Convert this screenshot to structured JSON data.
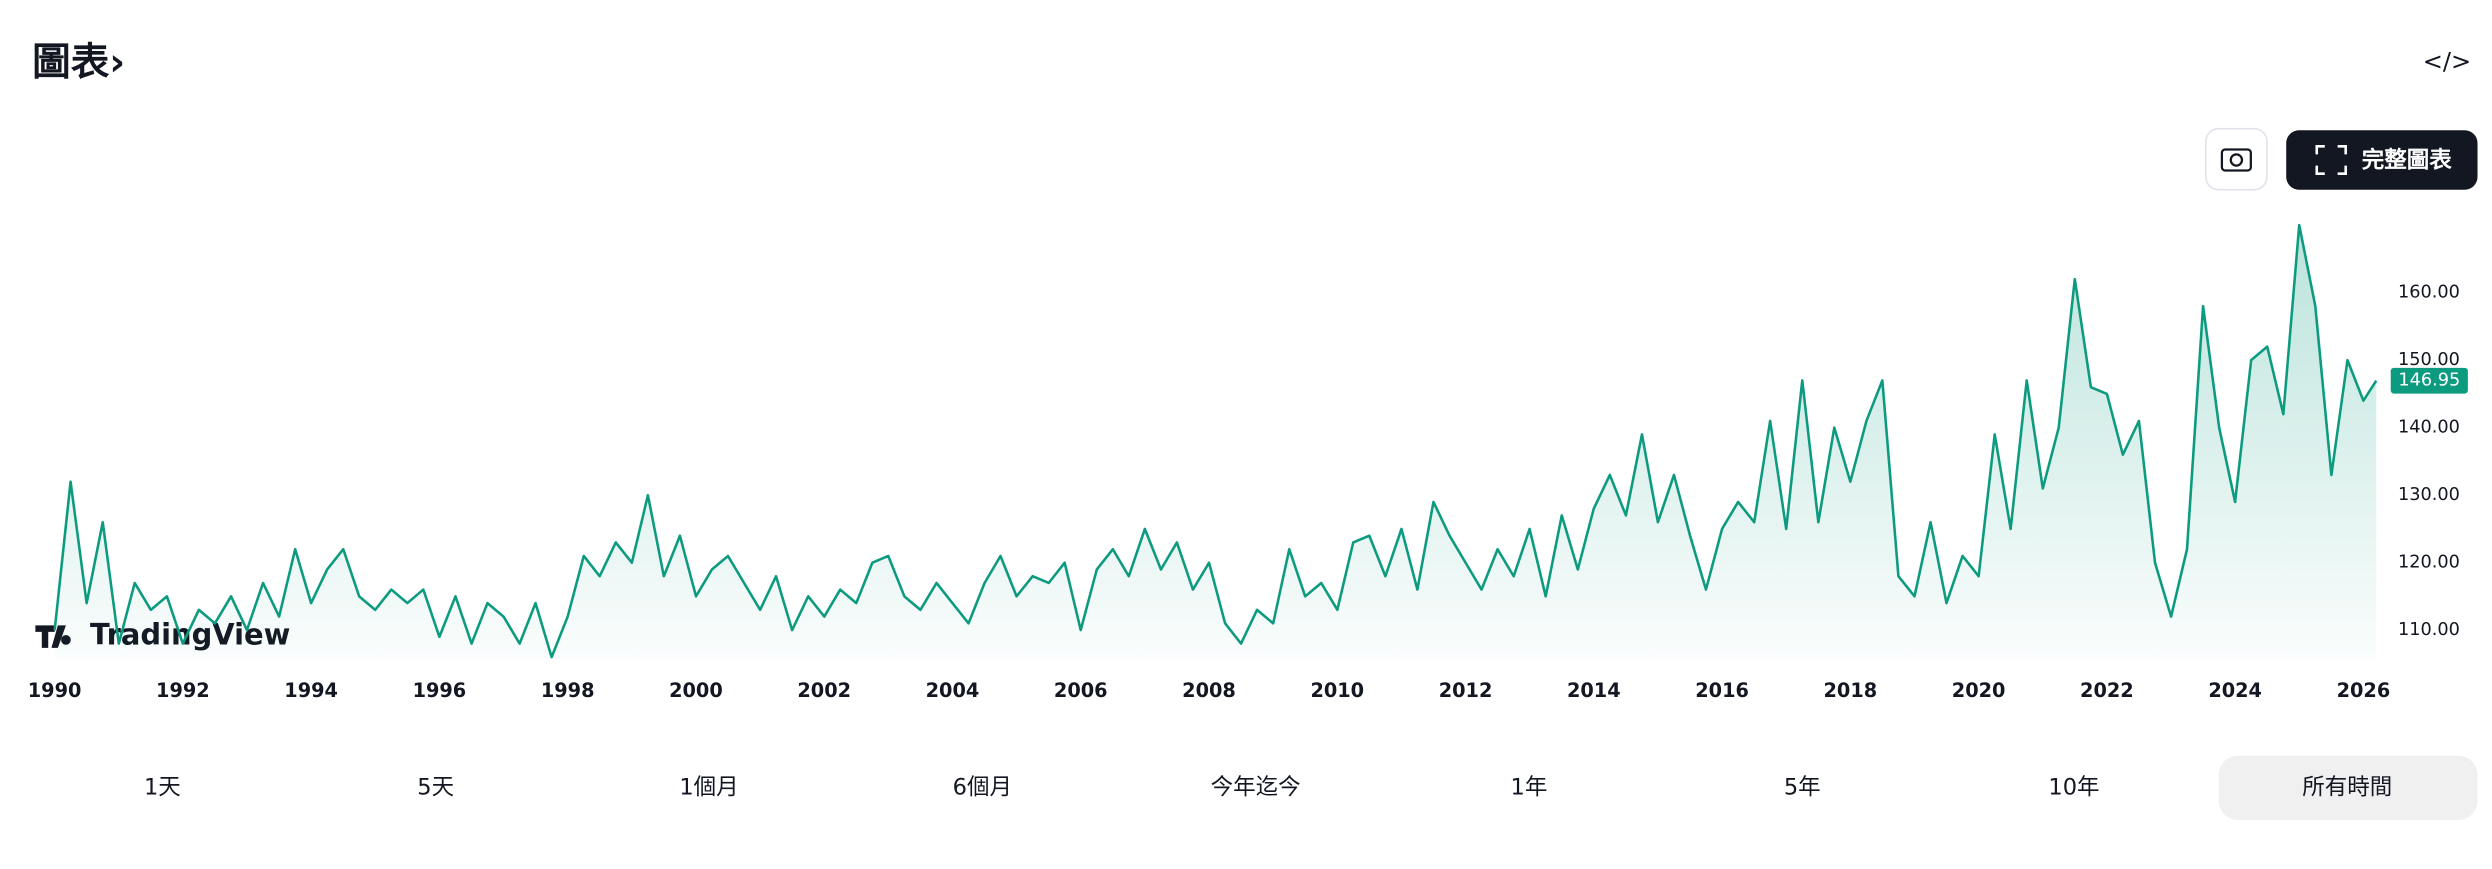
{
  "header": {
    "title": "圖表›",
    "embed": "</>"
  },
  "toolbar": {
    "full_chart": "完整圖表"
  },
  "range_buttons": [
    "1天",
    "5天",
    "1個月",
    "6個月",
    "今年迄今",
    "1年",
    "5年",
    "10年",
    "所有時間"
  ],
  "logo": "TradingView",
  "chart_data": {
    "type": "line",
    "color": "#0d9b80",
    "x": [
      1990,
      1990.25,
      1990.5,
      1990.75,
      1991,
      1991.25,
      1991.5,
      1991.75,
      1992,
      1992.25,
      1992.5,
      1992.75,
      1993,
      1993.25,
      1993.5,
      1993.75,
      1994,
      1994.25,
      1994.5,
      1994.75,
      1995,
      1995.25,
      1995.5,
      1995.75,
      1996,
      1996.25,
      1996.5,
      1996.75,
      1997,
      1997.25,
      1997.5,
      1997.75,
      1998,
      1998.25,
      1998.5,
      1998.75,
      1999,
      1999.25,
      1999.5,
      1999.75,
      2000,
      2000.25,
      2000.5,
      2000.75,
      2001,
      2001.25,
      2001.5,
      2001.75,
      2002,
      2002.25,
      2002.5,
      2002.75,
      2003,
      2003.25,
      2003.5,
      2003.75,
      2004,
      2004.25,
      2004.5,
      2004.75,
      2005,
      2005.25,
      2005.5,
      2005.75,
      2006,
      2006.25,
      2006.5,
      2006.75,
      2007,
      2007.25,
      2007.5,
      2007.75,
      2008,
      2008.25,
      2008.5,
      2008.75,
      2009,
      2009.25,
      2009.5,
      2009.75,
      2010,
      2010.25,
      2010.5,
      2010.75,
      2011,
      2011.25,
      2011.5,
      2011.75,
      2012,
      2012.25,
      2012.5,
      2012.75,
      2013,
      2013.25,
      2013.5,
      2013.75,
      2014,
      2014.25,
      2014.5,
      2014.75,
      2015,
      2015.25,
      2015.5,
      2015.75,
      2016,
      2016.25,
      2016.5,
      2016.75,
      2017,
      2017.25,
      2017.5,
      2017.75,
      2018,
      2018.25,
      2018.5,
      2018.75,
      2019,
      2019.25,
      2019.5,
      2019.75,
      2020,
      2020.25,
      2020.5,
      2020.75,
      2021,
      2021.25,
      2021.5,
      2021.75,
      2022,
      2022.25,
      2022.5,
      2022.75,
      2023,
      2023.25,
      2023.5,
      2023.75,
      2024,
      2024.25,
      2024.5,
      2024.75,
      2025,
      2025.25,
      2025.5,
      2025.75,
      2026,
      2026.2
    ],
    "values": [
      110,
      132,
      114,
      126,
      108,
      117,
      113,
      115,
      108,
      113,
      111,
      115,
      110,
      117,
      112,
      122,
      114,
      119,
      122,
      115,
      113,
      116,
      114,
      116,
      109,
      115,
      108,
      114,
      112,
      108,
      114,
      106,
      112,
      121,
      118,
      123,
      120,
      130,
      118,
      124,
      115,
      119,
      121,
      117,
      113,
      118,
      110,
      115,
      112,
      116,
      114,
      120,
      121,
      115,
      113,
      117,
      114,
      111,
      117,
      121,
      115,
      118,
      117,
      120,
      110,
      119,
      122,
      118,
      125,
      119,
      123,
      116,
      120,
      111,
      108,
      113,
      111,
      122,
      115,
      117,
      113,
      123,
      124,
      118,
      125,
      116,
      129,
      124,
      120,
      116,
      122,
      118,
      125,
      115,
      127,
      119,
      128,
      133,
      127,
      139,
      126,
      133,
      124,
      116,
      125,
      129,
      126,
      141,
      125,
      147,
      126,
      140,
      132,
      141,
      147,
      118,
      115,
      126,
      114,
      121,
      118,
      139,
      125,
      147,
      131,
      140,
      162,
      146,
      145,
      136,
      141,
      120,
      112,
      122,
      158,
      140,
      129,
      150,
      152,
      142,
      170,
      158,
      133,
      150,
      144,
      146.95
    ],
    "last_price_label": "146.95",
    "xlim": [
      1989.65,
      2026.25
    ],
    "ylim": [
      105.7,
      170
    ],
    "xticks": [
      1990,
      1992,
      1994,
      1996,
      1998,
      2000,
      2002,
      2004,
      2006,
      2008,
      2010,
      2012,
      2014,
      2016,
      2018,
      2020,
      2022,
      2024,
      2026
    ],
    "yticks": [
      {
        "value": 110,
        "label": "110.00"
      },
      {
        "value": 120,
        "label": "120.00"
      },
      {
        "value": 130,
        "label": "130.00"
      },
      {
        "value": 140,
        "label": "140.00"
      },
      {
        "value": 150,
        "label": "150.00"
      },
      {
        "value": 160,
        "label": "160.00"
      }
    ],
    "grid": false
  }
}
